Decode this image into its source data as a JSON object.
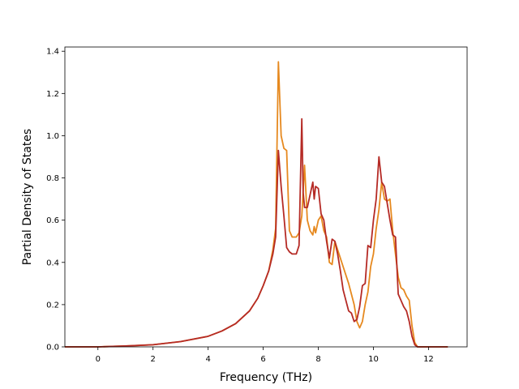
{
  "chart_data": {
    "type": "line",
    "title": "",
    "xlabel": "Frequency (THz)",
    "ylabel": "Partial Density of States",
    "xlim": [
      -1.2,
      13.4
    ],
    "ylim": [
      0,
      1.42
    ],
    "xticks": [
      0,
      2,
      4,
      6,
      8,
      10,
      12
    ],
    "xtick_labels": [
      "0",
      "2",
      "4",
      "6",
      "8",
      "10",
      "12"
    ],
    "yticks": [
      0.0,
      0.2,
      0.4,
      0.6,
      0.8,
      1.0,
      1.2,
      1.4
    ],
    "ytick_labels": [
      "0.0",
      "0.2",
      "0.4",
      "0.6",
      "0.8",
      "1.0",
      "1.2",
      "1.4"
    ],
    "grid": false,
    "legend": "none",
    "series": [
      {
        "color": "#e6891f",
        "x": [
          -1.2,
          0,
          1,
          2,
          3,
          4,
          4.5,
          5,
          5.5,
          5.8,
          6.0,
          6.2,
          6.35,
          6.45,
          6.55,
          6.65,
          6.75,
          6.85,
          6.95,
          7.05,
          7.2,
          7.3,
          7.4,
          7.5,
          7.6,
          7.7,
          7.8,
          7.85,
          7.9,
          8.0,
          8.1,
          8.2,
          8.3,
          8.4,
          8.5,
          8.6,
          8.7,
          8.8,
          8.9,
          9.0,
          9.1,
          9.2,
          9.3,
          9.4,
          9.5,
          9.6,
          9.7,
          9.8,
          9.9,
          10.0,
          10.1,
          10.2,
          10.3,
          10.4,
          10.5,
          10.6,
          10.7,
          10.8,
          10.9,
          11.0,
          11.1,
          11.2,
          11.3,
          11.4,
          11.5,
          11.6,
          12,
          12.7
        ],
        "y": [
          0,
          0,
          0.004,
          0.01,
          0.025,
          0.05,
          0.075,
          0.11,
          0.17,
          0.23,
          0.29,
          0.36,
          0.46,
          0.56,
          1.35,
          1.0,
          0.94,
          0.93,
          0.55,
          0.52,
          0.52,
          0.54,
          0.62,
          0.86,
          0.6,
          0.55,
          0.53,
          0.57,
          0.54,
          0.6,
          0.62,
          0.55,
          0.52,
          0.4,
          0.39,
          0.5,
          0.46,
          0.42,
          0.38,
          0.34,
          0.3,
          0.25,
          0.2,
          0.12,
          0.09,
          0.12,
          0.2,
          0.26,
          0.38,
          0.44,
          0.56,
          0.65,
          0.78,
          0.7,
          0.69,
          0.7,
          0.55,
          0.44,
          0.33,
          0.28,
          0.27,
          0.24,
          0.22,
          0.1,
          0.02,
          0,
          0,
          0
        ]
      },
      {
        "color": "#b52a25",
        "x": [
          -1.2,
          0,
          1,
          2,
          3,
          4,
          4.5,
          5,
          5.5,
          5.8,
          6.0,
          6.2,
          6.35,
          6.45,
          6.55,
          6.65,
          6.75,
          6.85,
          6.95,
          7.05,
          7.2,
          7.3,
          7.4,
          7.45,
          7.5,
          7.6,
          7.7,
          7.8,
          7.85,
          7.9,
          8.0,
          8.1,
          8.2,
          8.3,
          8.4,
          8.5,
          8.6,
          8.7,
          8.8,
          8.9,
          9.0,
          9.1,
          9.2,
          9.3,
          9.4,
          9.5,
          9.6,
          9.7,
          9.8,
          9.9,
          10.0,
          10.1,
          10.2,
          10.3,
          10.4,
          10.5,
          10.6,
          10.7,
          10.8,
          10.9,
          11.0,
          11.1,
          11.2,
          11.3,
          11.4,
          11.5,
          11.6,
          12,
          12.7
        ],
        "y": [
          0,
          0,
          0.004,
          0.01,
          0.025,
          0.05,
          0.075,
          0.11,
          0.17,
          0.23,
          0.29,
          0.36,
          0.44,
          0.52,
          0.93,
          0.76,
          0.62,
          0.47,
          0.45,
          0.44,
          0.44,
          0.48,
          1.08,
          0.73,
          0.66,
          0.66,
          0.72,
          0.78,
          0.7,
          0.76,
          0.75,
          0.63,
          0.6,
          0.5,
          0.42,
          0.51,
          0.5,
          0.44,
          0.36,
          0.27,
          0.22,
          0.17,
          0.16,
          0.12,
          0.13,
          0.19,
          0.29,
          0.3,
          0.48,
          0.47,
          0.6,
          0.7,
          0.9,
          0.78,
          0.76,
          0.68,
          0.6,
          0.53,
          0.52,
          0.25,
          0.22,
          0.19,
          0.17,
          0.12,
          0.05,
          0.01,
          0,
          0,
          0
        ]
      }
    ]
  }
}
